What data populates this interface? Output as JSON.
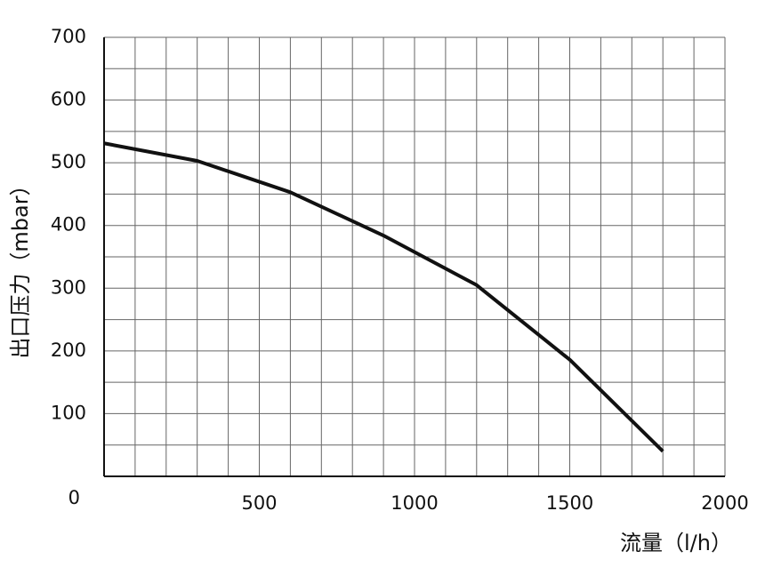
{
  "chart_data": {
    "type": "line",
    "x_label": "流量（l/h）",
    "y_label": "出口压力（mbar）",
    "x": [
      0,
      300,
      600,
      900,
      1200,
      1500,
      1800
    ],
    "series": [
      {
        "color": "#111111",
        "values": [
          531,
          503,
          453,
          384,
          305,
          186,
          40
        ]
      }
    ],
    "xlim": [
      0,
      2000
    ],
    "xticks": [
      500,
      1000,
      1500,
      2000
    ],
    "ylim": [
      0,
      700
    ],
    "yticks": [
      0,
      100,
      200,
      300,
      400,
      500,
      600,
      700
    ],
    "grid": true
  }
}
